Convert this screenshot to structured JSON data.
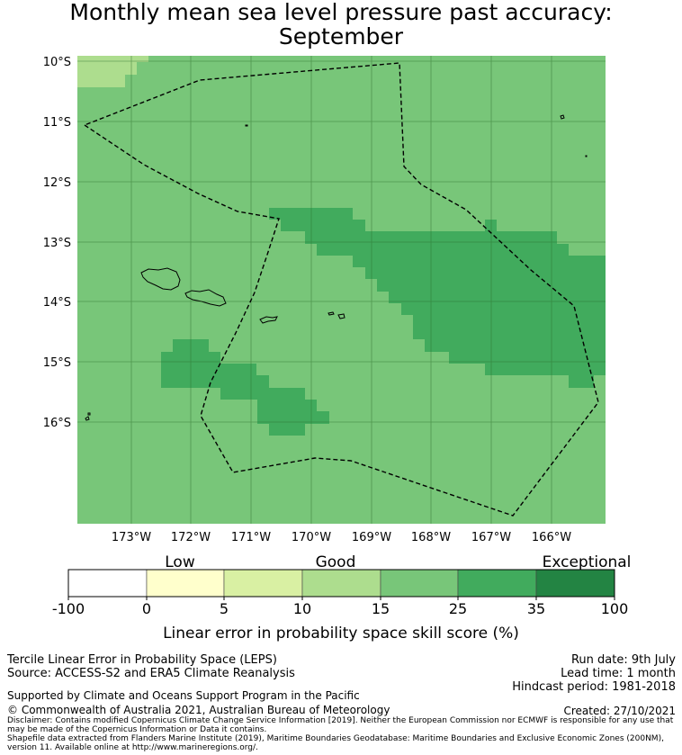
{
  "title": {
    "line1": "Monthly mean sea level pressure past accuracy:",
    "line2": "September"
  },
  "map": {
    "latitude_ticks": [
      "10°S",
      "11°S",
      "12°S",
      "13°S",
      "14°S",
      "15°S",
      "16°S"
    ],
    "longitude_ticks": [
      "173°W",
      "172°W",
      "171°W",
      "170°W",
      "169°W",
      "168°W",
      "167°W",
      "166°W"
    ],
    "boundary_style": "dashed",
    "colors": {
      "band_10_15": "#addd8e",
      "band_15_25": "#78c679",
      "band_25_35": "#41ab5d",
      "gridline": "#2d6e2d",
      "boundary": "#000000"
    }
  },
  "colorbar": {
    "title": "Linear error in probability space skill score (%)",
    "categories": [
      "Low",
      "Good",
      "Exceptional"
    ],
    "ticks": [
      "-100",
      "0",
      "5",
      "10",
      "15",
      "25",
      "35",
      "100"
    ],
    "colors": [
      "#ffffff",
      "#ffffcc",
      "#d9f0a3",
      "#addd8e",
      "#78c679",
      "#41ab5d",
      "#238443"
    ]
  },
  "footer": {
    "method": "Tercile Linear Error in Probability Space (LEPS)",
    "source": "Source: ACCESS-S2 and ERA5 Climate Reanalysis",
    "run_date": "Run date: 9th July",
    "lead_time": "Lead time: 1 month",
    "hindcast": "Hindcast period: 1981-2018",
    "support": "Supported by Climate and Oceans Support Program in the Pacific",
    "copyright": "© Commonwealth of Australia 2021, Australian Bureau of Meteorology",
    "created": "Created: 27/10/2021",
    "disclaimer1": "Disclaimer: Contains modified Copernicus Climate Change Service Information [2019]. Neither the European Commission nor ECMWF is responsible for any use that may be made of the Copernicus Information or Data it contains.",
    "disclaimer2": "Shapefile data extracted from Flanders Marine Institute (2019), Maritime Boundaries Geodatabase: Maritime Boundaries and Exclusive Economic Zones (200NM), version 11. Available online at http://www.marineregions.org/."
  }
}
